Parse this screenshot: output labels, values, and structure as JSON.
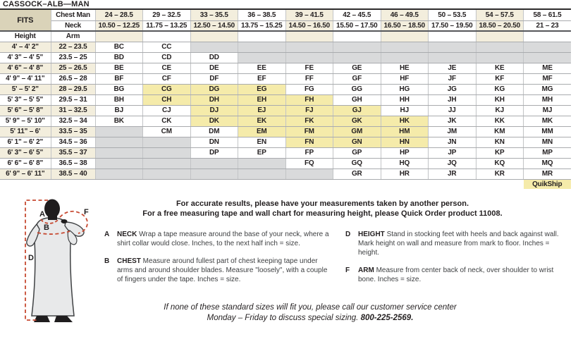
{
  "title": "CASSOCK–ALB—MAN",
  "colors": {
    "tan": "#dad3b9",
    "cream_stripe": "#f3eedd",
    "quikship_yellow": "#f5ebaa",
    "unavailable_gray": "#d9dadb",
    "measure_line_red": "#c74a32"
  },
  "table": {
    "fits_label": "FITS",
    "chest_label": "Chest Man",
    "neck_label": "Neck",
    "height_label": "Height",
    "arm_label": "Arm",
    "quikship_label": "QuikShip",
    "cell_encoding": {
      "unavailable": "",
      "quikship_highlight_suffix": "*"
    },
    "columns": [
      {
        "chest": "24 – 28.5",
        "neck": "10.50 – 12.25"
      },
      {
        "chest": "29 – 32.5",
        "neck": "11.75 – 13.25"
      },
      {
        "chest": "33 – 35.5",
        "neck": "12.50 – 14.50"
      },
      {
        "chest": "36 – 38.5",
        "neck": "13.75 – 15.25"
      },
      {
        "chest": "39 – 41.5",
        "neck": "14.50 – 16.50"
      },
      {
        "chest": "42 – 45.5",
        "neck": "15.50 – 17.50"
      },
      {
        "chest": "46 – 49.5",
        "neck": "16.50 – 18.50"
      },
      {
        "chest": "50 – 53.5",
        "neck": "17.50 – 19.50"
      },
      {
        "chest": "54 – 57.5",
        "neck": "18.50 – 20.50"
      },
      {
        "chest": "58 – 61.5",
        "neck": "21 – 23"
      }
    ],
    "rows": [
      {
        "height": "4' – 4' 2\"",
        "arm": "22 – 23.5",
        "cells": [
          "BC",
          "CC",
          "",
          "",
          "",
          "",
          "",
          "",
          "",
          ""
        ]
      },
      {
        "height": "4' 3\" – 4' 5\"",
        "arm": "23.5 – 25",
        "cells": [
          "BD",
          "CD",
          "DD",
          "",
          "",
          "",
          "",
          "",
          "",
          ""
        ]
      },
      {
        "height": "4' 6\" – 4' 8\"",
        "arm": "25 – 26.5",
        "cells": [
          "BE",
          "CE",
          "DE",
          "EE",
          "FE",
          "GE",
          "HE",
          "JE",
          "KE",
          "ME"
        ]
      },
      {
        "height": "4' 9\" – 4' 11\"",
        "arm": "26.5 – 28",
        "cells": [
          "BF",
          "CF",
          "DF",
          "EF",
          "FF",
          "GF",
          "HF",
          "JF",
          "KF",
          "MF"
        ]
      },
      {
        "height": "5' – 5' 2\"",
        "arm": "28 – 29.5",
        "cells": [
          "BG",
          "CG*",
          "DG*",
          "EG*",
          "FG",
          "GG",
          "HG",
          "JG",
          "KG",
          "MG"
        ]
      },
      {
        "height": "5' 3\" – 5' 5\"",
        "arm": "29.5 – 31",
        "cells": [
          "BH",
          "CH*",
          "DH*",
          "EH*",
          "FH*",
          "GH",
          "HH",
          "JH",
          "KH",
          "MH"
        ]
      },
      {
        "height": "5' 6\" – 5' 8\"",
        "arm": "31 – 32.5",
        "cells": [
          "BJ",
          "CJ",
          "DJ*",
          "EJ*",
          "FJ*",
          "GJ*",
          "HJ",
          "JJ",
          "KJ",
          "MJ"
        ]
      },
      {
        "height": "5' 9\" – 5' 10\"",
        "arm": "32.5 – 34",
        "cells": [
          "BK",
          "CK",
          "DK*",
          "EK*",
          "FK*",
          "GK*",
          "HK*",
          "JK",
          "KK",
          "MK"
        ]
      },
      {
        "height": "5' 11\" – 6'",
        "arm": "33.5 – 35",
        "cells": [
          "",
          "CM",
          "DM",
          "EM*",
          "FM*",
          "GM*",
          "HM*",
          "JM",
          "KM",
          "MM"
        ]
      },
      {
        "height": "6' 1\" – 6' 2\"",
        "arm": "34.5 – 36",
        "cells": [
          "",
          "",
          "DN",
          "EN",
          "FN*",
          "GN*",
          "HN*",
          "JN",
          "KN",
          "MN"
        ]
      },
      {
        "height": "6' 3\" – 6' 5\"",
        "arm": "35.5 – 37",
        "cells": [
          "",
          "",
          "DP",
          "EP",
          "FP",
          "GP",
          "HP",
          "JP",
          "KP",
          "MP"
        ]
      },
      {
        "height": "6' 6\" – 6' 8\"",
        "arm": "36.5 – 38",
        "cells": [
          "",
          "",
          "",
          "",
          "FQ",
          "GQ",
          "HQ",
          "JQ",
          "KQ",
          "MQ"
        ]
      },
      {
        "height": "6' 9\" – 6' 11\"",
        "arm": "38.5 – 40",
        "cells": [
          "",
          "",
          "",
          "",
          "",
          "GR",
          "HR",
          "JR",
          "KR",
          "MR"
        ]
      }
    ]
  },
  "figure_labels": {
    "a": "A",
    "b": "B",
    "d": "D",
    "f": "F"
  },
  "notes": {
    "line1": "For accurate results, please have your measurements taken by another person.",
    "line2": "For a free measuring tape and wall chart for measuring height, please Quick Order product 11008."
  },
  "instructions": {
    "left": [
      {
        "letter": "A",
        "term": "NECK",
        "text": "Wrap a tape measure around the base of your neck, where a shirt collar would close. Inches, to the next half inch = size."
      },
      {
        "letter": "B",
        "term": "CHEST",
        "text": "Measure around fullest part of chest keeping tape under arms and around shoulder blades. Measure \"loosely\", with a couple of fingers under the tape. Inches = size."
      }
    ],
    "right": [
      {
        "letter": "D",
        "term": "HEIGHT",
        "text": "Stand in stocking feet with heels and back against wall. Mark height on wall and measure from mark to floor. Inches = height."
      },
      {
        "letter": "F",
        "term": "ARM",
        "text": "Measure from center back of neck, over shoulder to wrist bone. Inches = size."
      }
    ]
  },
  "footer": {
    "line1": "If none of these standard sizes will fit you, please call our customer service center",
    "line2": "Monday – Friday to discuss special sizing. ",
    "phone": "800-225-2569."
  }
}
